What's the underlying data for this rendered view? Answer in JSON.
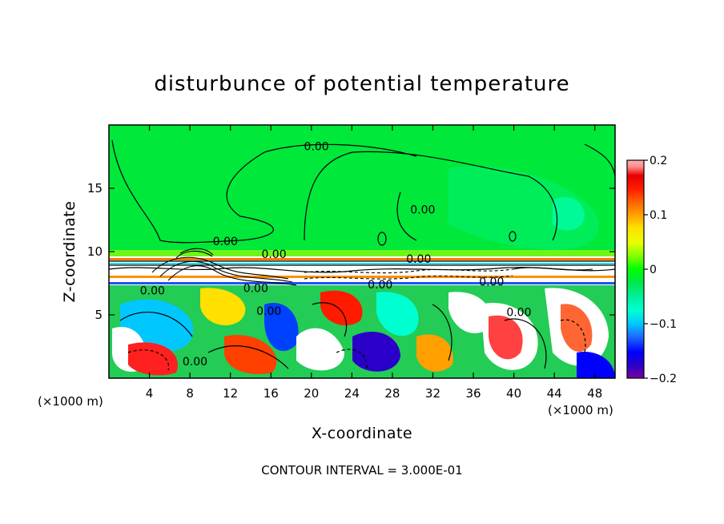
{
  "chart_data": {
    "type": "heatmap",
    "title": "disturbunce of potential temperature",
    "xlabel": "X-coordinate",
    "ylabel": "Z-coordinate",
    "x_unit_left": "(×1000 m)",
    "x_unit_right": "(×1000 m)",
    "footer": "CONTOUR INTERVAL = 3.000E-01",
    "xlim": [
      0,
      50
    ],
    "ylim": [
      0,
      20
    ],
    "x_ticks": [
      4,
      8,
      12,
      16,
      20,
      24,
      28,
      32,
      36,
      40,
      44,
      48
    ],
    "y_ticks": [
      5,
      10,
      15
    ],
    "colorbar": {
      "min": -0.2,
      "max": 0.2,
      "ticks": [
        0.2,
        0.1,
        0,
        -0.1,
        -0.2
      ],
      "tick_labels": [
        "0.2",
        "0.1",
        "0",
        "−0.1",
        "−0.2"
      ],
      "colors": [
        "#7a00a0",
        "#2a00c8",
        "#0000ff",
        "#1e6bff",
        "#00c8ff",
        "#00ffd0",
        "#00f0a0",
        "#00e84a",
        "#00ff00",
        "#7fff00",
        "#e6ff00",
        "#ffe000",
        "#ffa000",
        "#ff6000",
        "#ff1a00",
        "#e60000",
        "#ff8c8c",
        "#ffb0b0"
      ]
    },
    "contour_labels": [
      {
        "text": "0.00",
        "x": 20.5,
        "y": 18.0
      },
      {
        "text": "0.00",
        "x": 11.5,
        "y": 10.5
      },
      {
        "text": "0.00",
        "x": 16.3,
        "y": 9.5
      },
      {
        "text": "0.00",
        "x": 4.3,
        "y": 6.6
      },
      {
        "text": "0.00",
        "x": 14.5,
        "y": 6.8
      },
      {
        "text": "0.00",
        "x": 26.8,
        "y": 7.1
      },
      {
        "text": "0.00",
        "x": 30.6,
        "y": 9.1
      },
      {
        "text": "0.00",
        "x": 37.8,
        "y": 7.3
      },
      {
        "text": "0.00",
        "x": 8.5,
        "y": 1.0
      },
      {
        "text": "0.00",
        "x": 15.8,
        "y": 5.0
      },
      {
        "text": "0.00",
        "x": 31.0,
        "y": 13.0
      },
      {
        "text": "0.00",
        "x": 40.5,
        "y": 4.9
      }
    ]
  }
}
